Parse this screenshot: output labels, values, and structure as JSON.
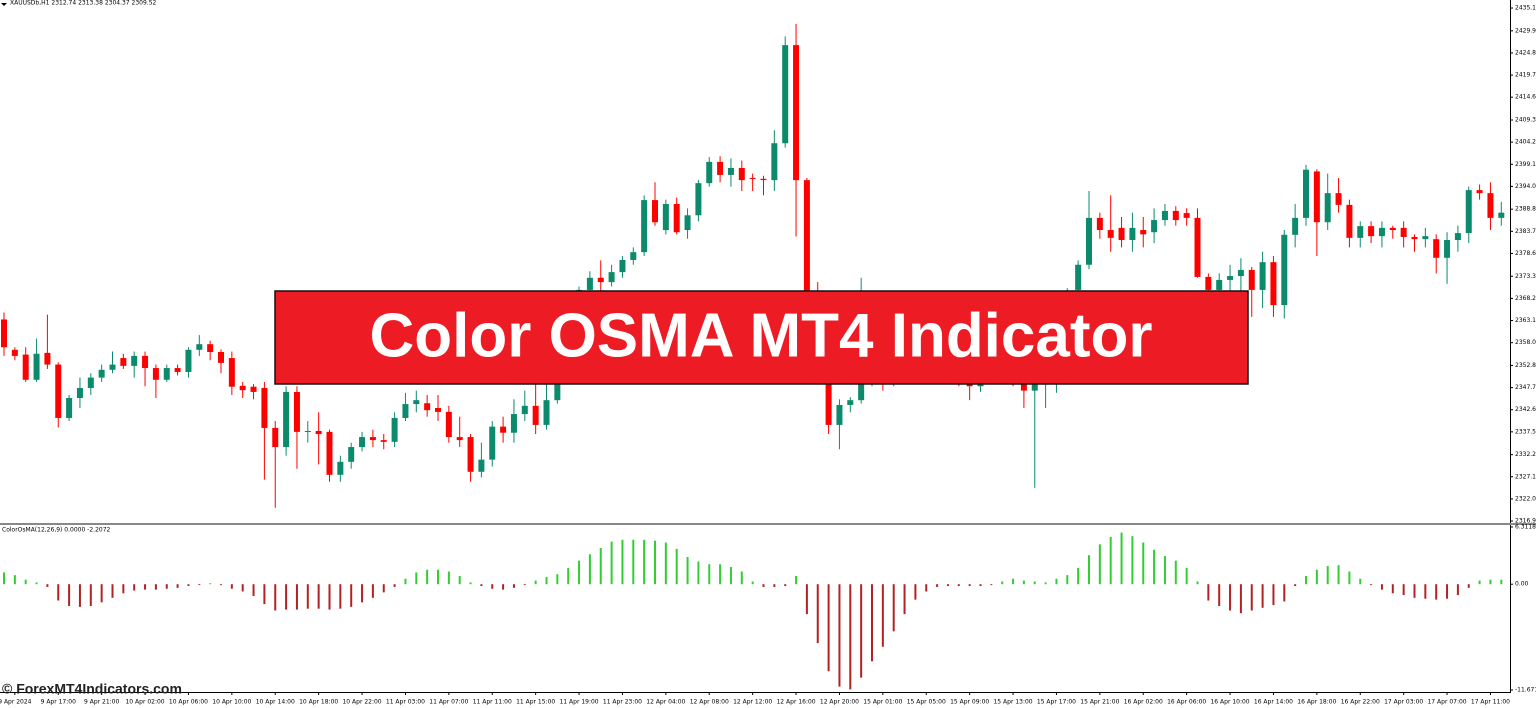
{
  "chart_data": [
    {
      "type": "candlestick",
      "title": "XAUUSDb,H1  2312.74 2313.38 2304.37 2309.52",
      "up_color": "#0b8a6c",
      "down_color": "#ff0000",
      "ylim": [
        2316.5,
        2437
      ],
      "yticks": [
        2435.15,
        {
          "value": 2429.9,
          "label": "2429.90"
        },
        {
          "value": 2424.8,
          "label": "2424.80"
        },
        {
          "value": 2419.7,
          "label": "2419.70"
        },
        {
          "value": 2414.6,
          "label": "2414.60"
        },
        2409.35,
        2404.25,
        2399.15,
        2394.05,
        {
          "value": 2388.8,
          "label": "2388.80"
        },
        {
          "value": 2383.7,
          "label": "2383.70"
        },
        {
          "value": 2378.6,
          "label": "2378.60"
        },
        2373.35,
        2368.25,
        2363.15,
        2358.05,
        {
          "value": 2352.8,
          "label": "2352.80"
        },
        {
          "value": 2347.7,
          "label": "2347.70"
        },
        {
          "value": 2342.6,
          "label": "2342.60"
        },
        {
          "value": 2337.5,
          "label": "2337.50"
        },
        2332.25,
        2327.15,
        2322.05,
        2316.95
      ],
      "open": [
        2363.4,
        2356.4,
        2355.3,
        2349.5,
        2355.7,
        2353,
        2340.7,
        2345.3,
        2347.6,
        2350,
        2351.8,
        2354.5,
        2352.7,
        2355,
        2352.2,
        2349.5,
        2352.2,
        2351.3,
        2356.4,
        2357.7,
        2355.9,
        2354.5,
        2348.1,
        2347.9,
        2347.6,
        2338.4,
        2334,
        2346.7,
        2337.5,
        2337.7,
        2337.5,
        2327.6,
        2330.6,
        2334,
        2336.3,
        2335.6,
        2335.2,
        2340.7,
        2343.9,
        2344.1,
        2343,
        2342.1,
        2336.3,
        2336.3,
        2328.3,
        2331.1,
        2338.7,
        2337.3,
        2341.6,
        2343.5,
        2339.1,
        2344.8,
        2354.1,
        2360,
        2370.2,
        2373,
        2372,
        2374.3,
        2377.1,
        2378.9,
        2390.9,
        2384,
        2390,
        2384,
        2387.4,
        2394.8,
        2399.7,
        2396.7,
        2398.3,
        2396,
        2395.8,
        2395.5,
        2404,
        2426.6,
        2395.5,
        2368,
        2356,
        2339.1,
        2343.7,
        2344.8,
        2350,
        2352,
        2350,
        2353,
        2351,
        2354,
        2352,
        2355,
        2353,
        2351,
        2348,
        2352,
        2354,
        2352,
        2350,
        2347,
        2355,
        2360,
        2366,
        2370.2,
        2376,
        2386.8,
        2384,
        2384.5,
        2381.7,
        2384,
        2383.5,
        2386.3,
        2388.4,
        2387.9,
        2386.8,
        2373.2,
        2370.2,
        2372.5,
        2373.4,
        2374.8,
        2370.2,
        2376.6,
        2366.7,
        2382.9,
        2386.8,
        2397.5,
        2385.8,
        2392.5,
        2389.8,
        2382.2,
        2384.9,
        2382.6,
        2384.5,
        2384.5,
        2382.4,
        2381.9,
        2381.9,
        2377.6,
        2381.7,
        2383.3,
        2393.2,
        2392.5,
        2386.8
      ],
      "high": [
        2365,
        2357,
        2357,
        2359,
        2364.5,
        2353.5,
        2346,
        2350,
        2351,
        2353,
        2356,
        2355.5,
        2356,
        2356,
        2353,
        2353,
        2353,
        2357,
        2359.8,
        2358.5,
        2356.5,
        2356,
        2349,
        2348.5,
        2349,
        2340,
        2348,
        2348,
        2340,
        2342,
        2338,
        2332,
        2335,
        2337.5,
        2338,
        2337,
        2342,
        2346.5,
        2347,
        2346,
        2346,
        2343.5,
        2341,
        2337,
        2335,
        2340,
        2341,
        2345,
        2347,
        2350,
        2349,
        2355,
        2361,
        2371,
        2374.5,
        2377,
        2376,
        2378,
        2380,
        2392,
        2395,
        2391,
        2391.5,
        2389,
        2395.5,
        2400.8,
        2401,
        2400.5,
        2400,
        2397,
        2396.5,
        2407,
        2428.6,
        2431.5,
        2396,
        2372,
        2358,
        2345,
        2345.5,
        2373,
        2355,
        2354,
        2356,
        2355,
        2357,
        2356,
        2358,
        2357,
        2355,
        2353,
        2354,
        2356,
        2357,
        2354,
        2352,
        2357,
        2362,
        2367,
        2370.6,
        2377,
        2393,
        2388,
        2392,
        2387,
        2388,
        2387,
        2389,
        2390,
        2389.5,
        2389,
        2389,
        2374,
        2374,
        2376,
        2377.5,
        2375.5,
        2379,
        2378,
        2384,
        2390,
        2399,
        2398,
        2397,
        2396,
        2391,
        2386,
        2386,
        2386,
        2385,
        2386,
        2383,
        2384.5,
        2383,
        2383.5,
        2385,
        2394,
        2394.5,
        2395,
        2390.5
      ],
      "low": [
        2355,
        2354,
        2349,
        2349,
        2352,
        2338.5,
        2340,
        2343,
        2346,
        2349,
        2351,
        2352,
        2350,
        2348,
        2345.3,
        2349,
        2350.5,
        2350,
        2355,
        2354,
        2351,
        2346,
        2345.3,
        2345,
        2326.5,
        2320,
        2332,
        2329,
        2335,
        2330,
        2326,
        2326,
        2329,
        2333,
        2334,
        2333.5,
        2334,
        2340,
        2342,
        2341,
        2340,
        2335,
        2334,
        2326,
        2327,
        2329.5,
        2335,
        2335,
        2340,
        2337,
        2338,
        2344,
        2353,
        2359,
        2368,
        2370,
        2371,
        2373,
        2376,
        2378,
        2385,
        2383,
        2383,
        2382,
        2386,
        2394,
        2395,
        2394,
        2393,
        2393,
        2392,
        2393,
        2403,
        2382.5,
        2360,
        2350,
        2337,
        2333.5,
        2342,
        2344,
        2348,
        2347,
        2348,
        2349,
        2350,
        2350,
        2350,
        2350,
        2348,
        2344.8,
        2346.7,
        2350,
        2350,
        2348,
        2343,
        2324.6,
        2343,
        2346.5,
        2364,
        2368,
        2375,
        2382,
        2379,
        2380,
        2379,
        2380,
        2381,
        2385,
        2385,
        2385,
        2373,
        2365,
        2368,
        2370,
        2369,
        2364,
        2366,
        2364,
        2363.6,
        2380,
        2385,
        2378,
        2384,
        2388,
        2380,
        2380,
        2381,
        2380,
        2382,
        2380,
        2379,
        2380,
        2374,
        2371.6,
        2379,
        2381,
        2391,
        2384,
        2385
      ],
      "close": [
        2357,
        2355,
        2349.5,
        2355.5,
        2353,
        2340.7,
        2345.3,
        2347.6,
        2350,
        2351.8,
        2353,
        2352.7,
        2355,
        2352.2,
        2349.5,
        2352.2,
        2351.3,
        2356.4,
        2357.7,
        2355.9,
        2353.4,
        2347.9,
        2347.1,
        2346.7,
        2338.4,
        2334,
        2346.7,
        2337.5,
        2337.7,
        2337,
        2327.6,
        2330.6,
        2334,
        2336.3,
        2335.6,
        2335.2,
        2340.7,
        2343.9,
        2344.8,
        2342.5,
        2342.1,
        2336.3,
        2335.6,
        2328.3,
        2331.1,
        2338.7,
        2337.3,
        2341.6,
        2343.5,
        2339.1,
        2344.8,
        2354.1,
        2360,
        2370.2,
        2373,
        2372,
        2374.3,
        2377.1,
        2378.9,
        2390.9,
        2385.8,
        2390,
        2383.5,
        2387.4,
        2394.8,
        2399.7,
        2396.7,
        2398.3,
        2395.5,
        2395.8,
        2395.5,
        2404,
        2426.6,
        2395.5,
        2368,
        2356,
        2339.1,
        2343.7,
        2344.8,
        2350,
        2352,
        2350,
        2353,
        2351,
        2354,
        2352,
        2355,
        2353,
        2351,
        2348,
        2352,
        2354,
        2352,
        2350,
        2347,
        2355,
        2360,
        2366,
        2370,
        2376,
        2386.8,
        2384,
        2382.2,
        2381.7,
        2384.5,
        2383,
        2386.3,
        2388.4,
        2386.3,
        2386.8,
        2373.2,
        2370.2,
        2372.5,
        2373.4,
        2374.8,
        2370.2,
        2376.6,
        2366.7,
        2382.9,
        2386.8,
        2397.9,
        2385.8,
        2392.5,
        2389.8,
        2382.2,
        2384.9,
        2382.6,
        2384.5,
        2384,
        2382.4,
        2381.9,
        2382.6,
        2377.6,
        2381.7,
        2383.3,
        2393.2,
        2392.5,
        2386.8,
        2388
      ]
    },
    {
      "type": "bar",
      "title": "ColorOsMA(12,26,9) 0.0000 -2.2072",
      "up_color": "#32cd32",
      "down_color": "#b22222",
      "ylim": [
        -11.6717,
        6.3118
      ],
      "yticks": [
        6.3118,
        {
          "value": 0,
          "label": "0.00"
        },
        -11.6717
      ],
      "categories": [
        null,
        "9 Apr 2024",
        null,
        null,
        null,
        "9 Apr 17:00",
        null,
        null,
        null,
        "9 Apr 21:00",
        null,
        null,
        null,
        "10 Apr 02:00",
        null,
        null,
        null,
        "10 Apr 06:00",
        null,
        null,
        null,
        "10 Apr 10:00",
        null,
        null,
        null,
        "10 Apr 14:00",
        null,
        null,
        null,
        "10 Apr 18:00",
        null,
        null,
        null,
        "10 Apr 22:00",
        null,
        null,
        null,
        "11 Apr 03:00",
        null,
        null,
        null,
        "11 Apr 07:00",
        null,
        null,
        null,
        "11 Apr 11:00",
        null,
        null,
        null,
        "11 Apr 15:00",
        null,
        null,
        null,
        "11 Apr 19:00",
        null,
        null,
        null,
        "11 Apr 23:00",
        null,
        null,
        null,
        "12 Apr 04:00",
        null,
        null,
        null,
        "12 Apr 08:00",
        null,
        null,
        null,
        "12 Apr 12:00",
        null,
        null,
        null,
        "12 Apr 16:00",
        null,
        null,
        null,
        "12 Apr 20:00",
        null,
        null,
        null,
        "15 Apr 01:00",
        null,
        null,
        null,
        "15 Apr 05:00",
        null,
        null,
        null,
        "15 Apr 09:00",
        null,
        null,
        null,
        "15 Apr 13:00",
        null,
        null,
        null,
        "15 Apr 17:00",
        null,
        null,
        null,
        "15 Apr 21:00",
        null,
        null,
        null,
        "16 Apr 02:00",
        null,
        null,
        null,
        "16 Apr 06:00",
        null,
        null,
        null,
        "16 Apr 10:00",
        null,
        null,
        null,
        "16 Apr 14:00",
        null,
        null,
        null,
        "16 Apr 18:00",
        null,
        null,
        null,
        "16 Apr 22:00",
        null,
        null,
        null,
        "17 Apr 03:00",
        null,
        null,
        null,
        "17 Apr 07:00",
        null,
        null,
        null,
        "17 Apr 11:00",
        null
      ],
      "values": [
        1.3,
        1,
        0.5,
        0.2,
        -0.3,
        -1.8,
        -2.4,
        -2.5,
        -2.4,
        -2,
        -1.5,
        -1,
        -0.7,
        -0.6,
        -0.6,
        -0.5,
        -0.4,
        -0.2,
        -0.1,
        0.1,
        -0.1,
        -0.5,
        -0.8,
        -1.3,
        -2.2,
        -2.9,
        -2.8,
        -2.8,
        -2.7,
        -2.7,
        -2.8,
        -2.7,
        -2.5,
        -2,
        -1.5,
        -0.9,
        -0.3,
        0.6,
        1.3,
        1.6,
        1.6,
        1.4,
        0.9,
        0.2,
        -0.2,
        -0.5,
        -0.6,
        -0.4,
        -0.1,
        0.4,
        0.8,
        1.1,
        1.8,
        2.6,
        3.3,
        4,
        4.7,
        4.9,
        4.9,
        4.9,
        4.8,
        4.6,
        3.9,
        3,
        2.5,
        2.2,
        2.2,
        1.9,
        1.4,
        0.3,
        -0.3,
        -0.3,
        -0.2,
        0.9,
        -3.3,
        -6.5,
        -9.6,
        -11.3,
        -11.6,
        -10.3,
        -8.5,
        -6.9,
        -5.2,
        -3.3,
        -1.7,
        -0.8,
        -0.3,
        -0.2,
        -0.2,
        -0.2,
        -0.2,
        -0.1,
        0.3,
        0.6,
        0.4,
        0.3,
        0.2,
        0.6,
        1,
        1.8,
        3.2,
        4.4,
        5.2,
        5.7,
        5.3,
        4.6,
        3.8,
        3.1,
        2.6,
        1.8,
        0.3,
        -1.8,
        -2.4,
        -2.9,
        -3.2,
        -2.9,
        -2.6,
        -2.3,
        -1.9,
        -0.2,
        0.9,
        1.6,
        2,
        2.1,
        1.4,
        0.6,
        -0.1,
        -0.6,
        -1,
        -1.2,
        -1.5,
        -1.6,
        -1.7,
        -1.6,
        -1.2,
        -0.4,
        0.4,
        0.5,
        0.5
      ]
    }
  ],
  "overlay": {
    "banner": "Color OSMA MT4 Indicator",
    "watermark": "© ForexMT4Indicators.com"
  }
}
